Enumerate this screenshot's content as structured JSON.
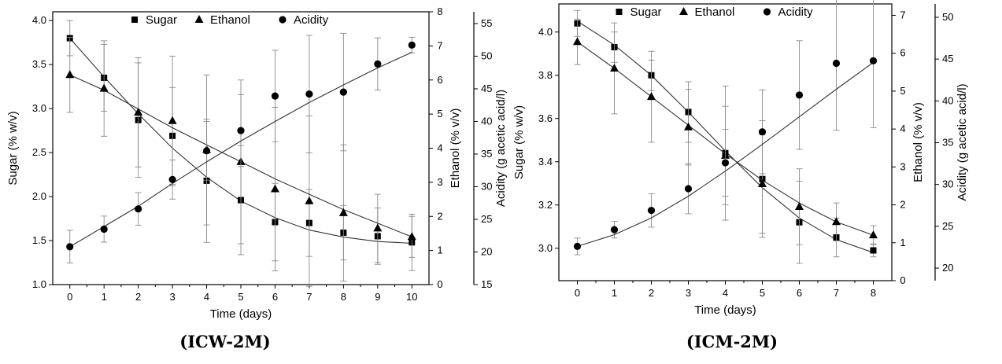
{
  "chart_data": [
    {
      "type": "line",
      "caption": "(ICW-2M)",
      "xlabel": "Time (days)",
      "ylabel_left": "Sugar (% w/v)",
      "ylabel_right_inner": "Ethanol (% v/v)",
      "ylabel_right_outer": "Acidity (g acetic acid/l)",
      "xlim": [
        -0.5,
        10.5
      ],
      "xticks": [
        "0",
        "1",
        "2",
        "3",
        "4",
        "5",
        "6",
        "7",
        "8",
        "9",
        "10"
      ],
      "ylim_left": [
        1.0,
        4.1
      ],
      "yticks_left": [
        "1.0",
        "1.5",
        "2.0",
        "2.5",
        "3.0",
        "3.5",
        "4.0"
      ],
      "ylim_right_inner": [
        0,
        8
      ],
      "yticks_right_inner": [
        "0",
        "1",
        "2",
        "3",
        "4",
        "5",
        "6",
        "7",
        "8"
      ],
      "ylim_right_outer": [
        15,
        56.8
      ],
      "yticks_right_outer": [
        "15",
        "20",
        "25",
        "30",
        "35",
        "40",
        "45",
        "50",
        "55"
      ],
      "legend": [
        "Sugar",
        "Ethanol",
        "Acidity"
      ],
      "series": [
        {
          "name": "Sugar",
          "marker": "square",
          "axis": "left",
          "x": [
            0,
            1,
            2,
            3,
            4,
            5,
            6,
            7,
            8,
            9,
            10
          ],
          "values": [
            3.8,
            3.35,
            2.87,
            2.69,
            2.18,
            1.96,
            1.71,
            1.7,
            1.59,
            1.55,
            1.48
          ],
          "err": [
            0.2,
            0.38,
            0.65,
            0.55,
            0.7,
            0.62,
            0.44,
            0.38,
            0.31,
            0.32,
            0.32
          ],
          "fit": [
            [
              0,
              3.8
            ],
            [
              1,
              3.36
            ],
            [
              2,
              2.94
            ],
            [
              3,
              2.55
            ],
            [
              4,
              2.22
            ],
            [
              5,
              1.95
            ],
            [
              6,
              1.76
            ],
            [
              7,
              1.62
            ],
            [
              8,
              1.54
            ],
            [
              9,
              1.49
            ],
            [
              10,
              1.47
            ]
          ]
        },
        {
          "name": "Ethanol",
          "marker": "triangle",
          "axis": "right_inner",
          "x": [
            0,
            1,
            2,
            3,
            4,
            5,
            6,
            7,
            8,
            9,
            10
          ],
          "values": [
            6.15,
            5.75,
            5.05,
            4.8,
            3.95,
            3.6,
            2.8,
            2.45,
            2.1,
            1.65,
            1.4
          ],
          "err": [
            1.1,
            1.4,
            1.6,
            1.9,
            2.2,
            2.4,
            2.4,
            2.5,
            2.0,
            1.0,
            0.6
          ],
          "fit": [
            [
              0,
              6.15
            ],
            [
              1,
              5.7
            ],
            [
              2,
              5.15
            ],
            [
              3,
              4.6
            ],
            [
              4,
              4.1
            ],
            [
              5,
              3.6
            ],
            [
              6,
              3.1
            ],
            [
              7,
              2.65
            ],
            [
              8,
              2.2
            ],
            [
              9,
              1.8
            ],
            [
              10,
              1.4
            ]
          ]
        },
        {
          "name": "Acidity",
          "marker": "circle",
          "axis": "right_outer",
          "x": [
            0,
            1,
            2,
            3,
            4,
            5,
            6,
            7,
            8,
            9,
            10
          ],
          "values": [
            20.8,
            23.5,
            26.6,
            31.1,
            35.5,
            38.6,
            43.9,
            44.2,
            44.5,
            48.8,
            51.7
          ],
          "err": [
            2.5,
            2.0,
            2.5,
            3.0,
            4.5,
            5.5,
            7.0,
            9.0,
            9.0,
            4.0,
            1.2
          ],
          "fit": [
            [
              0,
              20.8
            ],
            [
              1,
              23.9
            ],
            [
              2,
              27.0
            ],
            [
              3,
              30.5
            ],
            [
              4,
              33.8
            ],
            [
              5,
              37.0
            ],
            [
              6,
              40.0
            ],
            [
              7,
              42.9
            ],
            [
              8,
              45.6
            ],
            [
              9,
              48.2
            ],
            [
              10,
              50.6
            ]
          ]
        }
      ]
    },
    {
      "type": "line",
      "caption": "(ICM-2M)",
      "xlabel": "Time (days)",
      "ylabel_left": "Sugar (% w/v)",
      "ylabel_right_inner": "Ethanol (% v/v)",
      "ylabel_right_outer": "Acidity (g acetic acid/l)",
      "xlim": [
        -0.5,
        8.5
      ],
      "xticks": [
        "0",
        "1",
        "2",
        "3",
        "4",
        "5",
        "6",
        "7",
        "8"
      ],
      "ylim_left": [
        2.85,
        4.13
      ],
      "yticks_left": [
        "3.0",
        "3.2",
        "3.4",
        "3.6",
        "3.8",
        "4.0"
      ],
      "ylim_right_inner": [
        0,
        7.3
      ],
      "yticks_right_inner": [
        "0",
        "1",
        "2",
        "3",
        "4",
        "5",
        "6",
        "7"
      ],
      "ylim_right_outer": [
        18.5,
        51.6
      ],
      "yticks_right_outer": [
        "20",
        "25",
        "30",
        "35",
        "40",
        "45",
        "50"
      ],
      "legend": [
        "Sugar",
        "Ethanol",
        "Acidity"
      ],
      "series": [
        {
          "name": "Sugar",
          "marker": "square",
          "axis": "left",
          "x": [
            0,
            1,
            2,
            3,
            4,
            5,
            6,
            7,
            8
          ],
          "values": [
            4.04,
            3.93,
            3.8,
            3.63,
            3.44,
            3.32,
            3.12,
            3.05,
            2.99
          ],
          "err": [
            0.06,
            0.07,
            0.07,
            0.14,
            0.31,
            0.27,
            0.19,
            0.09,
            0.03
          ],
          "fit": [
            [
              0,
              4.05
            ],
            [
              1,
              3.94
            ],
            [
              2,
              3.8
            ],
            [
              3,
              3.63
            ],
            [
              4,
              3.45
            ],
            [
              5,
              3.28
            ],
            [
              6,
              3.14
            ],
            [
              7,
              3.04
            ],
            [
              8,
              2.98
            ]
          ]
        },
        {
          "name": "Ethanol",
          "marker": "triangle",
          "axis": "right_inner",
          "x": [
            0,
            1,
            2,
            3,
            4,
            5,
            6,
            7,
            8
          ],
          "values": [
            6.3,
            5.6,
            4.85,
            4.05,
            3.3,
            2.55,
            1.95,
            1.55,
            1.2
          ],
          "err": [
            0.6,
            1.2,
            1.2,
            1.0,
            1.3,
            1.3,
            1.0,
            0.5,
            0.25
          ],
          "fit": [
            [
              0,
              6.3
            ],
            [
              1,
              5.6
            ],
            [
              2,
              4.85
            ],
            [
              3,
              4.1
            ],
            [
              4,
              3.35
            ],
            [
              5,
              2.65
            ],
            [
              6,
              2.05
            ],
            [
              7,
              1.55
            ],
            [
              8,
              1.2
            ]
          ]
        },
        {
          "name": "Acidity",
          "marker": "circle",
          "axis": "right_outer",
          "x": [
            0,
            1,
            2,
            3,
            4,
            5,
            6,
            7,
            8
          ],
          "values": [
            22.6,
            24.6,
            26.9,
            29.5,
            32.6,
            36.3,
            40.7,
            44.5,
            44.8
          ],
          "err": [
            1.0,
            1.0,
            2.0,
            3.0,
            4.0,
            5.0,
            6.5,
            8.0,
            8.0
          ],
          "fit": [
            [
              0,
              22.6
            ],
            [
              1,
              24.0
            ],
            [
              2,
              26.0
            ],
            [
              3,
              28.6
            ],
            [
              4,
              31.6
            ],
            [
              5,
              34.8
            ],
            [
              6,
              38.1
            ],
            [
              7,
              41.4
            ],
            [
              8,
              44.6
            ]
          ]
        }
      ]
    }
  ]
}
